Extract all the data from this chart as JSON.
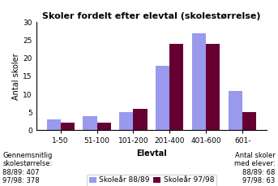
{
  "title": "Skoler fordelt efter elevtal (skolestørrelse)",
  "xlabel": "Elevtal",
  "ylabel": "Antal skoler",
  "categories": [
    "1-50",
    "51-100",
    "101-200",
    "201-400",
    "401-600",
    "601-"
  ],
  "series_8889": [
    3,
    4,
    5,
    18,
    27,
    11
  ],
  "series_9798": [
    2,
    2,
    6,
    24,
    24,
    5
  ],
  "color_8889": "#9999ee",
  "color_9798": "#660033",
  "ylim": [
    0,
    30
  ],
  "yticks": [
    0,
    5,
    10,
    15,
    20,
    25,
    30
  ],
  "legend_8889": "Skoleår 88/89",
  "legend_9798": "Skoleår 97/98",
  "footnote_left": "Gennemsnitlig\nskolestørrelse:\n88/89: 407\n97/98: 378",
  "footnote_right": "Antal skoler\nmed elever:\n88/89: 68\n97/98: 63",
  "title_fontsize": 8,
  "axis_label_fontsize": 7,
  "tick_fontsize": 6.5,
  "legend_fontsize": 6.5,
  "footnote_fontsize": 6
}
